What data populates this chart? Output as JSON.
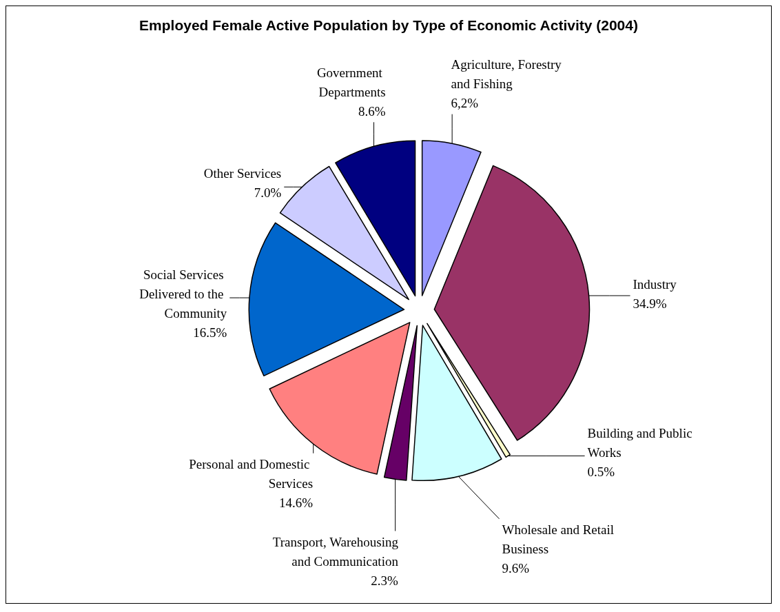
{
  "chart_data": {
    "type": "pie",
    "title": "Employed Female Active Population by Type of Economic Activity (2004)",
    "categories": [
      "Agriculture, Forestry and Fishing",
      "Industry",
      "Building and Public Works",
      "Wholesale and Retail Business",
      "Transport, Warehousing and Communication",
      "Personal and Domestic Services",
      "Social Services Delivered to the Community",
      "Other Services",
      "Government Departments"
    ],
    "values": [
      6.2,
      34.9,
      0.5,
      9.6,
      2.3,
      14.6,
      16.5,
      7.0,
      8.6
    ],
    "value_labels": [
      "6,2%",
      "34.9%",
      "0.5%",
      "9.6%",
      "2.3%",
      "14.6%",
      "16.5%",
      "7.0%",
      "8.6%"
    ],
    "colors": [
      "#9999ff",
      "#993366",
      "#ffffcc",
      "#ccffff",
      "#660066",
      "#ff8080",
      "#0066cc",
      "#ccccff",
      "#000080"
    ]
  }
}
